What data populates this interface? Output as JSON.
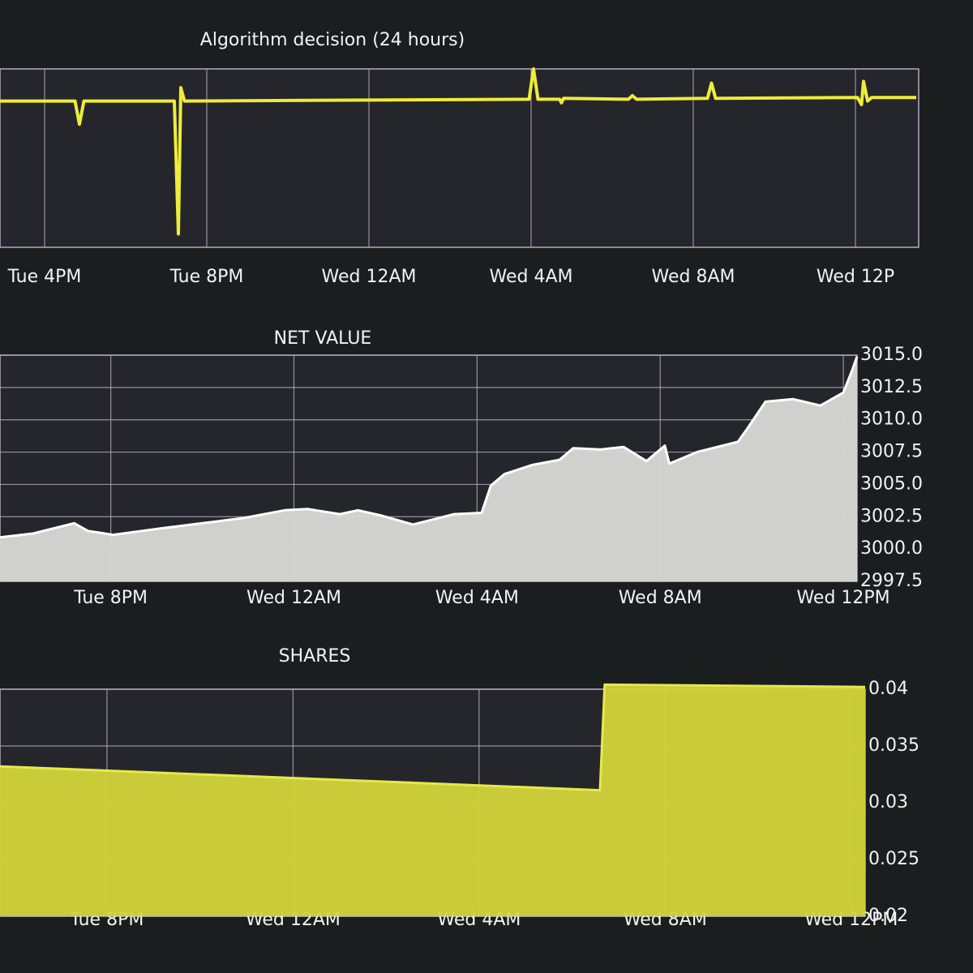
{
  "chart_data": [
    {
      "type": "line",
      "title": "Algorithm decision (24 hours)",
      "color": "#eeec3a",
      "x": [
        -1.1,
        0.75,
        0.86,
        0.97,
        3.2,
        3.3,
        3.36,
        3.45,
        11.95,
        12.06,
        12.17,
        12.7,
        12.75,
        12.8,
        14.4,
        14.5,
        14.6,
        16.35,
        16.45,
        16.55,
        20.05,
        20.15,
        20.2,
        20.3,
        20.4,
        21.5
      ],
      "values": [
        0.64,
        0.64,
        0.38,
        0.64,
        0.64,
        -0.85,
        0.79,
        0.64,
        0.66,
        1.0,
        0.66,
        0.66,
        0.62,
        0.67,
        0.66,
        0.7,
        0.66,
        0.67,
        0.84,
        0.67,
        0.68,
        0.6,
        0.86,
        0.64,
        0.68,
        0.68
      ],
      "xlim": [
        -1.1,
        21.56
      ],
      "ylim": [
        -1,
        1
      ],
      "xticks": [
        {
          "value": 0,
          "label": "Tue 4PM"
        },
        {
          "value": 4,
          "label": "Tue 8PM"
        },
        {
          "value": 8,
          "label": "Wed 12AM"
        },
        {
          "value": 12,
          "label": "Wed 4AM"
        },
        {
          "value": 16,
          "label": "Wed 8AM"
        },
        {
          "value": 20,
          "label": "Wed 12P"
        }
      ],
      "grid": true
    },
    {
      "type": "area",
      "title": "NET VALUE",
      "color": "#ffffff",
      "fill": "#d9d9d5",
      "x": [
        1.58,
        2.3,
        3.2,
        3.5,
        4.05,
        5.1,
        6.0,
        6.9,
        7.8,
        8.3,
        9.0,
        9.4,
        9.9,
        10.6,
        11.5,
        12.1,
        12.3,
        12.6,
        13.2,
        13.8,
        14.1,
        14.7,
        15.2,
        15.7,
        16.1,
        16.2,
        16.8,
        17.7,
        17.9,
        18.3,
        18.9,
        19.5,
        20.0,
        20.2,
        20.3
      ],
      "values": [
        3000.9,
        3001.2,
        3002.0,
        3001.4,
        3001.1,
        3001.6,
        3002.0,
        3002.4,
        3003.0,
        3003.1,
        3002.7,
        3003.0,
        3002.6,
        3001.9,
        3002.7,
        3002.8,
        3004.9,
        3005.8,
        3006.5,
        3006.9,
        3007.8,
        3007.7,
        3007.9,
        3006.8,
        3008.0,
        3006.6,
        3007.5,
        3008.3,
        3009.3,
        3011.4,
        3011.6,
        3011.1,
        3012.1,
        3013.9,
        3014.9
      ],
      "xlim": [
        1.58,
        20.3
      ],
      "ylim": [
        2997.5,
        3015
      ],
      "xticks": [
        {
          "value": 4,
          "label": "Tue 8PM"
        },
        {
          "value": 8,
          "label": "Wed 12AM"
        },
        {
          "value": 12,
          "label": "Wed 4AM"
        },
        {
          "value": 16,
          "label": "Wed 8AM"
        },
        {
          "value": 20,
          "label": "Wed 12PM"
        }
      ],
      "yticks": [
        2997.5,
        {
          "value": 3000,
          "label": "3000.0"
        },
        3002.5,
        {
          "value": 3005,
          "label": "3005.0"
        },
        3007.5,
        {
          "value": 3010,
          "label": "3010.0"
        },
        3012.5,
        {
          "value": 3015,
          "label": "3015.0"
        }
      ],
      "grid": true
    },
    {
      "type": "area",
      "title": "SHARES",
      "color": "#e6e84a",
      "fill": "#d2d43a",
      "x": [
        1.7,
        14.6,
        14.7,
        20.3
      ],
      "values": [
        0.0332,
        0.0311,
        0.0404,
        0.0402
      ],
      "xlim": [
        1.7,
        20.3
      ],
      "ylim": [
        0.02,
        0.04
      ],
      "xticks": [
        {
          "value": 4,
          "label": "Tue 8PM"
        },
        {
          "value": 8,
          "label": "Wed 12AM"
        },
        {
          "value": 12,
          "label": "Wed 4AM"
        },
        {
          "value": 16,
          "label": "Wed 8AM"
        },
        {
          "value": 20,
          "label": "Wed 12PM"
        }
      ],
      "yticks": [
        0.02,
        0.025,
        0.03,
        0.035,
        0.04
      ],
      "grid": true
    }
  ]
}
